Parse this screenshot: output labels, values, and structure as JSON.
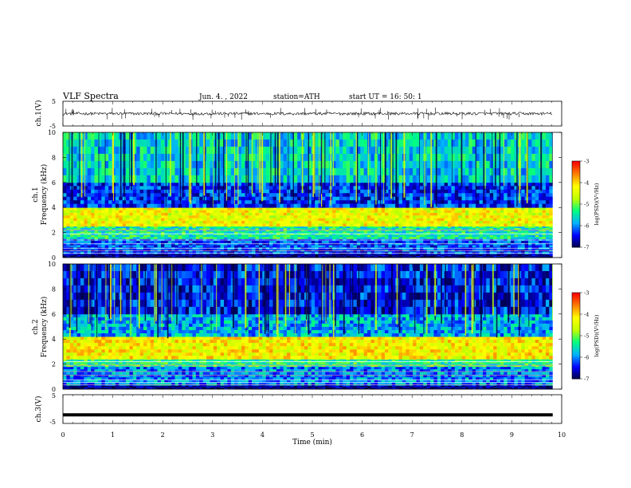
{
  "header": {
    "title": "VLF  Spectra",
    "date": "Jun. 4.  , 2022",
    "station": "station=ATH",
    "start": "start  UT  =   16: 50: 1"
  },
  "chart_data": [
    {
      "type": "line",
      "id": "ch1-waveform",
      "ylabel": "ch.1(V)",
      "ylim": [
        -5,
        5
      ],
      "y_ticks": [
        "5",
        "-5"
      ],
      "xlim": [
        0,
        10
      ],
      "data_extent_min": 9.82,
      "description_values": {
        "baseline_v": 0.0,
        "typical_amplitude_v": 0.6,
        "spike_amplitude_v": 2.5
      }
    },
    {
      "type": "heatmap",
      "id": "ch1-spectrogram",
      "ylabel_line1": "ch.1",
      "ylabel_line2": "Frequency  (kHz)",
      "ylim": [
        0,
        10
      ],
      "y_ticks": [
        "10",
        "8",
        "6",
        "4",
        "2",
        "0"
      ],
      "xlim": [
        0,
        10
      ],
      "data_extent_min": 9.82,
      "colorbar": {
        "label": "log(PSD)(V²/Hz)",
        "range": [
          -7,
          -3
        ],
        "ticks": [
          "-3",
          "-4",
          "-5",
          "-6",
          "-7"
        ]
      },
      "bands_khz": [
        {
          "range": [
            0.0,
            0.3
          ],
          "level": -6.8
        },
        {
          "range": [
            0.3,
            1.5
          ],
          "level": -6.2
        },
        {
          "range": [
            1.5,
            2.5
          ],
          "level": -5.4
        },
        {
          "range": [
            2.5,
            4.0
          ],
          "level": -4.3
        },
        {
          "range": [
            4.0,
            6.0
          ],
          "level": -6.3
        },
        {
          "range": [
            6.0,
            10.0
          ],
          "level": -5.6
        }
      ]
    },
    {
      "type": "heatmap",
      "id": "ch2-spectrogram",
      "ylabel_line1": "ch.2",
      "ylabel_line2": "Frequency  (kHz)",
      "ylim": [
        0,
        10
      ],
      "y_ticks": [
        "10",
        "8",
        "6",
        "4",
        "2",
        "0"
      ],
      "xlim": [
        0,
        10
      ],
      "data_extent_min": 9.82,
      "colorbar": {
        "label": "log(PSD)(V²/Hz)",
        "range": [
          -7,
          -3
        ],
        "ticks": [
          "-3",
          "-4",
          "-5",
          "-6",
          "-7"
        ]
      },
      "bands_khz": [
        {
          "range": [
            0.0,
            0.3
          ],
          "level": -6.8
        },
        {
          "range": [
            0.3,
            1.8
          ],
          "level": -6.0
        },
        {
          "range": [
            1.8,
            2.4
          ],
          "level": -5.3
        },
        {
          "range": [
            2.4,
            4.2
          ],
          "level": -4.2
        },
        {
          "range": [
            4.2,
            6.0
          ],
          "level": -5.8
        },
        {
          "range": [
            6.0,
            10.0
          ],
          "level": -6.4
        }
      ]
    },
    {
      "type": "line",
      "id": "ch3-waveform",
      "ylabel": "ch.3(V)",
      "ylim": [
        -5,
        5
      ],
      "y_ticks": [
        "5",
        "-5"
      ],
      "xlim": [
        0,
        10
      ],
      "data_extent_min": 9.82,
      "description_values": {
        "baseline_v": -2.0
      }
    }
  ],
  "x_axis": {
    "label": "Time  (min)",
    "ticks": [
      "0",
      "1",
      "2",
      "3",
      "4",
      "5",
      "6",
      "7",
      "8",
      "9",
      "10"
    ]
  },
  "colors": {
    "cmap": [
      "#000040",
      "#0000ff",
      "#00b0ff",
      "#00ff80",
      "#c0ff00",
      "#ffff00",
      "#ff8000",
      "#ff0000",
      "#ffffff"
    ]
  }
}
